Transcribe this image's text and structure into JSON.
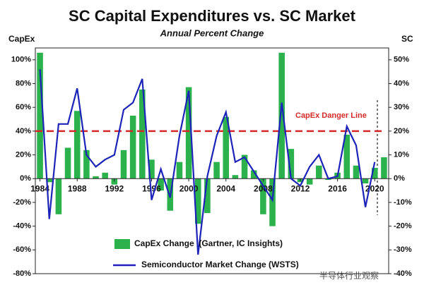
{
  "chart_data": {
    "type": "bar_line",
    "title": "SC Capital Expenditures vs. SC Market",
    "subtitle": "Annual Percent Change",
    "y_label": "CapEx",
    "y2_label": "SC",
    "x": [
      1984,
      1985,
      1986,
      1987,
      1988,
      1989,
      1990,
      1991,
      1992,
      1993,
      1994,
      1995,
      1996,
      1997,
      1998,
      1999,
      2000,
      2001,
      2002,
      2003,
      2004,
      2005,
      2006,
      2007,
      2008,
      2009,
      2010,
      2011,
      2012,
      2013,
      2014,
      2015,
      2016,
      2017,
      2018,
      2019,
      2020,
      2021
    ],
    "series": [
      {
        "name": "CapEx Change  (Gartner, IC Insights)",
        "type": "bar",
        "color": "#2bb24c",
        "values": [
          106,
          -3,
          -30,
          26,
          57,
          24,
          2,
          5,
          -5,
          24,
          53,
          75,
          16,
          -10,
          -27,
          14,
          77,
          -38,
          -29,
          14,
          52,
          3,
          20,
          7,
          -30,
          -40,
          106,
          25,
          -3,
          -5,
          11,
          -1,
          5,
          37,
          11,
          -4,
          9,
          18
        ]
      },
      {
        "name": "Semiconductor Market Change (WSTS)",
        "type": "line",
        "color": "#1c23b8",
        "axis": "y2",
        "values": [
          46,
          -17,
          23,
          23,
          38,
          10,
          5,
          8,
          10,
          29,
          32,
          42,
          -9,
          4,
          -8,
          18,
          37,
          -32,
          1,
          18,
          28,
          7,
          9,
          3,
          -3,
          -9,
          32,
          0,
          -3,
          5,
          10,
          0,
          1,
          22,
          14,
          -12,
          7,
          null
        ]
      }
    ],
    "xlim": [
      1983.5,
      2021.5
    ],
    "xticks": [
      1984,
      1988,
      1992,
      1996,
      2000,
      2004,
      2008,
      2012,
      2016,
      2020
    ],
    "ylim": [
      -80,
      110
    ],
    "yticks": [
      {
        "value": -80,
        "label": "-80%"
      },
      {
        "value": -60,
        "label": "-60%"
      },
      {
        "value": -40,
        "label": "-40%"
      },
      {
        "value": -20,
        "label": "-20%"
      },
      {
        "value": 0,
        "label": "0%"
      },
      {
        "value": 20,
        "label": "20%"
      },
      {
        "value": 40,
        "label": "40%"
      },
      {
        "value": 60,
        "label": "60%"
      },
      {
        "value": 80,
        "label": "80%"
      },
      {
        "value": 100,
        "label": "100%"
      }
    ],
    "y2lim": [
      -40,
      55
    ],
    "y2ticks": [
      {
        "value": -40,
        "label": "-40%"
      },
      {
        "value": -30,
        "label": "-30%"
      },
      {
        "value": -20,
        "label": "-20%"
      },
      {
        "value": -10,
        "label": "-10%"
      },
      {
        "value": 0,
        "label": "0%"
      },
      {
        "value": 10,
        "label": "10%"
      },
      {
        "value": 20,
        "label": "20%"
      },
      {
        "value": 30,
        "label": "30%"
      },
      {
        "value": 40,
        "label": "40%"
      },
      {
        "value": 50,
        "label": "50%"
      }
    ],
    "reference_line": {
      "value": 40,
      "label": "CapEx Danger Line",
      "color": "#d62a2a"
    },
    "watermark": "半导体行业观察"
  }
}
